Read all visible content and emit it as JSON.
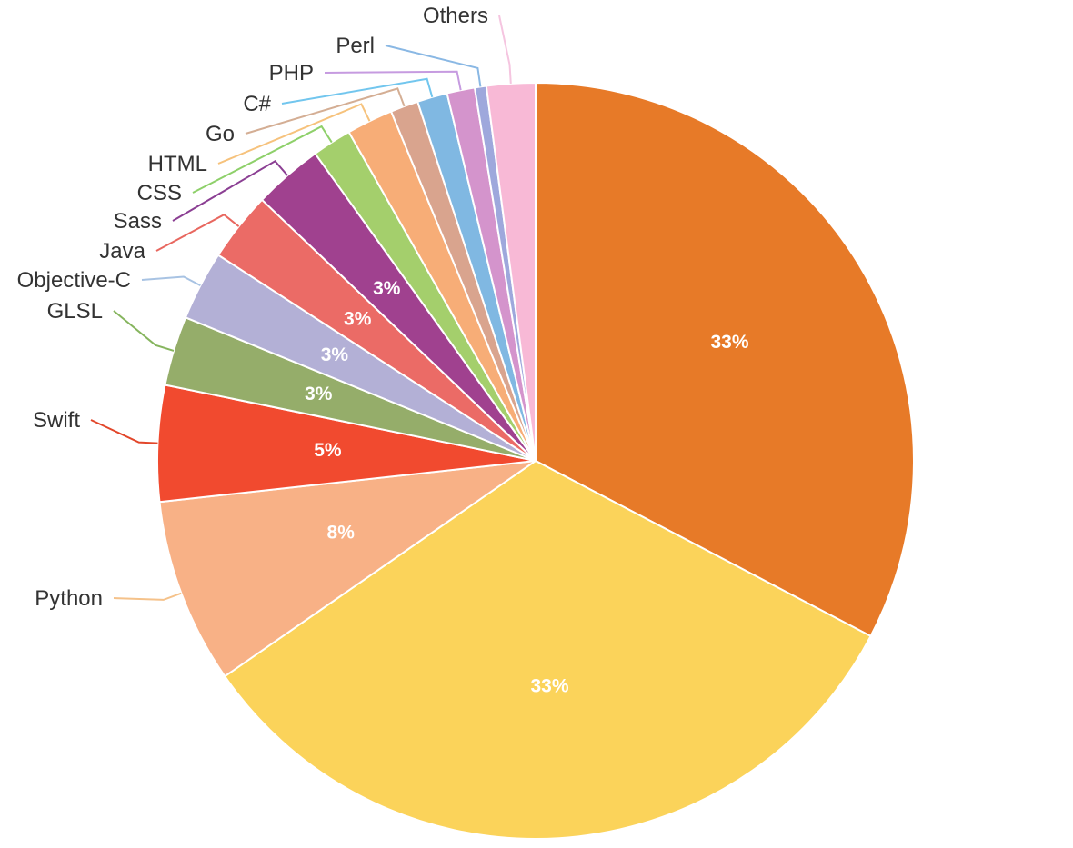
{
  "chart_data": {
    "type": "pie",
    "title": "",
    "start_angle_deg": 0,
    "direction": "clockwise",
    "slices": [
      {
        "label": "",
        "value": 33.0,
        "display": "33%",
        "color": "#e77a28"
      },
      {
        "label": "",
        "value": 33.0,
        "display": "33%",
        "color": "#fbd35a"
      },
      {
        "label": "Python",
        "value": 8.0,
        "display": "8%",
        "color": "#f8b186",
        "leader_color": "#f5c28a"
      },
      {
        "label": "Swift",
        "value": 5.0,
        "display": "5%",
        "color": "#f14a2f",
        "leader_color": "#e2462a"
      },
      {
        "label": "GLSL",
        "value": 3.0,
        "display": "3%",
        "color": "#95ad6a",
        "leader_color": "#86b55e"
      },
      {
        "label": "Objective-C",
        "value": 3.0,
        "display": "3%",
        "color": "#b3b0d6",
        "leader_color": "#a8c3e3"
      },
      {
        "label": "Java",
        "value": 3.0,
        "display": "3%",
        "color": "#eb6b66",
        "leader_color": "#e8675f"
      },
      {
        "label": "Sass",
        "value": 3.0,
        "display": "3%",
        "color": "#a0418f",
        "leader_color": "#8b3f93"
      },
      {
        "label": "CSS",
        "value": 1.7,
        "display": "",
        "color": "#a4cf6c",
        "leader_color": "#8ed06a"
      },
      {
        "label": "HTML",
        "value": 2.0,
        "display": "",
        "color": "#f7ad77",
        "leader_color": "#f6c27c"
      },
      {
        "label": "Go",
        "value": 1.2,
        "display": "",
        "color": "#d9a48e",
        "leader_color": "#d4ae94"
      },
      {
        "label": "C#",
        "value": 1.3,
        "display": "",
        "color": "#80b8e2",
        "leader_color": "#72c6ee"
      },
      {
        "label": "PHP",
        "value": 1.2,
        "display": "",
        "color": "#d494cc",
        "leader_color": "#c69be0"
      },
      {
        "label": "Perl",
        "value": 0.5,
        "display": "",
        "color": "#9ea8dc",
        "leader_color": "#8ab8e4"
      },
      {
        "label": "Others",
        "value": 2.1,
        "display": "",
        "color": "#f8b9d6",
        "leader_color": "#f5c5e0"
      }
    ]
  }
}
